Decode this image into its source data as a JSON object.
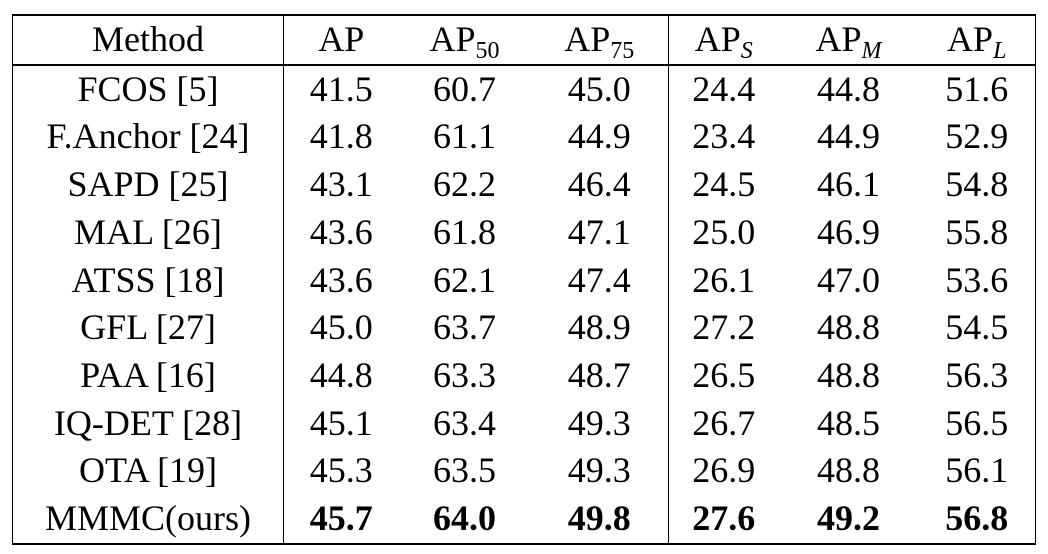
{
  "table": {
    "header": [
      {
        "text": "Method"
      },
      {
        "text": "AP"
      },
      {
        "text": "AP",
        "sub": "50"
      },
      {
        "text": "AP",
        "sub": "75"
      },
      {
        "text": "AP",
        "sub": "S",
        "italic": true
      },
      {
        "text": "AP",
        "sub": "M",
        "italic": true
      },
      {
        "text": "AP",
        "sub": "L",
        "italic": true
      }
    ],
    "rows": [
      {
        "method": "FCOS [5]",
        "values": [
          "41.5",
          "60.7",
          "45.0",
          "24.4",
          "44.8",
          "51.6"
        ]
      },
      {
        "method": "F.Anchor [24]",
        "values": [
          "41.8",
          "61.1",
          "44.9",
          "23.4",
          "44.9",
          "52.9"
        ]
      },
      {
        "method": "SAPD [25]",
        "values": [
          "43.1",
          "62.2",
          "46.4",
          "24.5",
          "46.1",
          "54.8"
        ]
      },
      {
        "method": "MAL [26]",
        "values": [
          "43.6",
          "61.8",
          "47.1",
          "25.0",
          "46.9",
          "55.8"
        ]
      },
      {
        "method": "ATSS [18]",
        "values": [
          "43.6",
          "62.1",
          "47.4",
          "26.1",
          "47.0",
          "53.6"
        ]
      },
      {
        "method": "GFL [27]",
        "values": [
          "45.0",
          "63.7",
          "48.9",
          "27.2",
          "48.8",
          "54.5"
        ]
      },
      {
        "method": "PAA [16]",
        "values": [
          "44.8",
          "63.3",
          "48.7",
          "26.5",
          "48.8",
          "56.3"
        ]
      },
      {
        "method": "IQ-DET [28]",
        "values": [
          "45.1",
          "63.4",
          "49.3",
          "26.7",
          "48.5",
          "56.5"
        ]
      },
      {
        "method": "OTA [19]",
        "values": [
          "45.3",
          "63.5",
          "49.3",
          "26.9",
          "48.8",
          "56.1"
        ]
      },
      {
        "method": "MMMC(ours)",
        "values": [
          "45.7",
          "64.0",
          "49.8",
          "27.6",
          "49.2",
          "56.8"
        ],
        "bold": true
      }
    ]
  }
}
